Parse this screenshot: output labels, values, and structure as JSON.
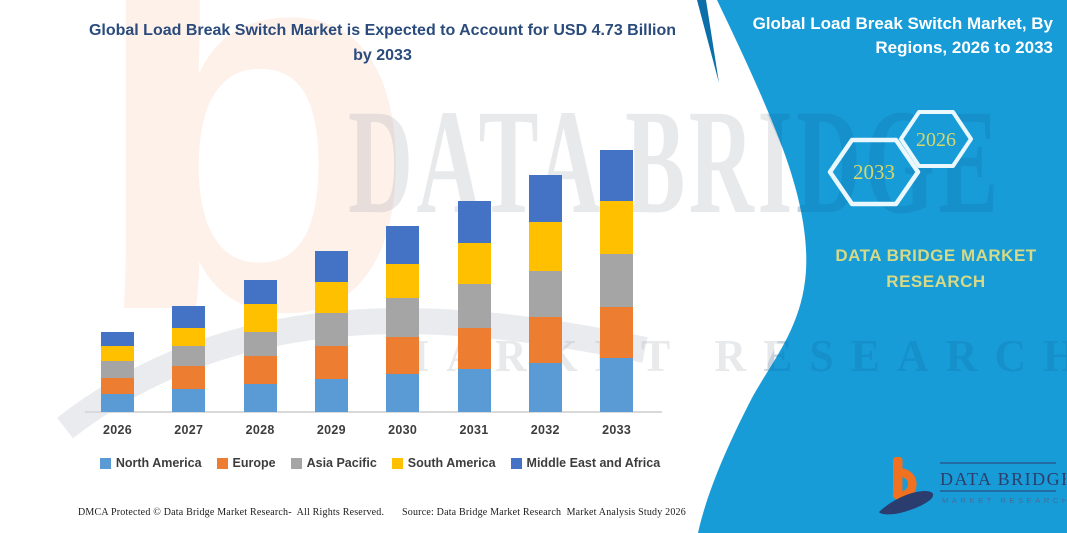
{
  "title": {
    "line1": "Global Load Break Switch Market is Expected to Account for USD 4.73  Billion",
    "line2": "by 2033"
  },
  "right_panel": {
    "heading_line1": "Global Load Break Switch Market, By",
    "heading_line2": "Regions, 2026 to 2033",
    "hexagon_labels": [
      "2033",
      "2026"
    ],
    "brand_line1": "DATA BRIDGE MARKET",
    "brand_line2": "RESEARCH",
    "bg_color": "#189cd8",
    "edge_accent_color": "#0c6fa9",
    "accent_text_color": "#d6d985"
  },
  "watermark": {
    "line1": "DATA BRIDGE",
    "line2": "MARKET RESEARCH"
  },
  "logo": {
    "name": "DATA BRIDGE",
    "subtitle": "MARKET RESEARCH",
    "orange": "#f0711f",
    "navy": "#2b3c6e"
  },
  "footer": {
    "left": "DMCA Protected © Data Bridge Market Research-  All Rights Reserved.",
    "right": "Source: Data Bridge Market Research  Market Analysis Study 2026"
  },
  "chart_data": {
    "type": "bar",
    "stacked": true,
    "title": "Global Load Break Switch Market is Expected to Account for USD 4.73 Billion by 2033",
    "unit": "USD Billion",
    "categories": [
      "2026",
      "2027",
      "2028",
      "2029",
      "2030",
      "2031",
      "2032",
      "2033"
    ],
    "series": [
      {
        "name": "North America",
        "color": "#5B9BD5",
        "values": [
          0.33,
          0.41,
          0.5,
          0.59,
          0.68,
          0.77,
          0.89,
          0.98
        ]
      },
      {
        "name": "Europe",
        "color": "#ED7D31",
        "values": [
          0.28,
          0.41,
          0.5,
          0.59,
          0.66,
          0.74,
          0.83,
          0.92
        ]
      },
      {
        "name": "Asia Pacific",
        "color": "#A5A5A5",
        "values": [
          0.31,
          0.36,
          0.44,
          0.59,
          0.7,
          0.8,
          0.83,
          0.95
        ]
      },
      {
        "name": "South America",
        "color": "#FFC000",
        "values": [
          0.27,
          0.33,
          0.5,
          0.55,
          0.62,
          0.74,
          0.89,
          0.96
        ]
      },
      {
        "name": "Middle East and Africa",
        "color": "#4472C4",
        "values": [
          0.25,
          0.4,
          0.43,
          0.56,
          0.69,
          0.76,
          0.85,
          0.92
        ]
      }
    ],
    "totals": [
      1.44,
      1.91,
      2.37,
      2.88,
      3.35,
      3.81,
      4.29,
      4.73
    ],
    "ylim": [
      0,
      5
    ],
    "gridlines": false,
    "y_axis_shown": false,
    "legend_position": "bottom",
    "highlight_value": "USD 4.73 Billion by 2033"
  }
}
